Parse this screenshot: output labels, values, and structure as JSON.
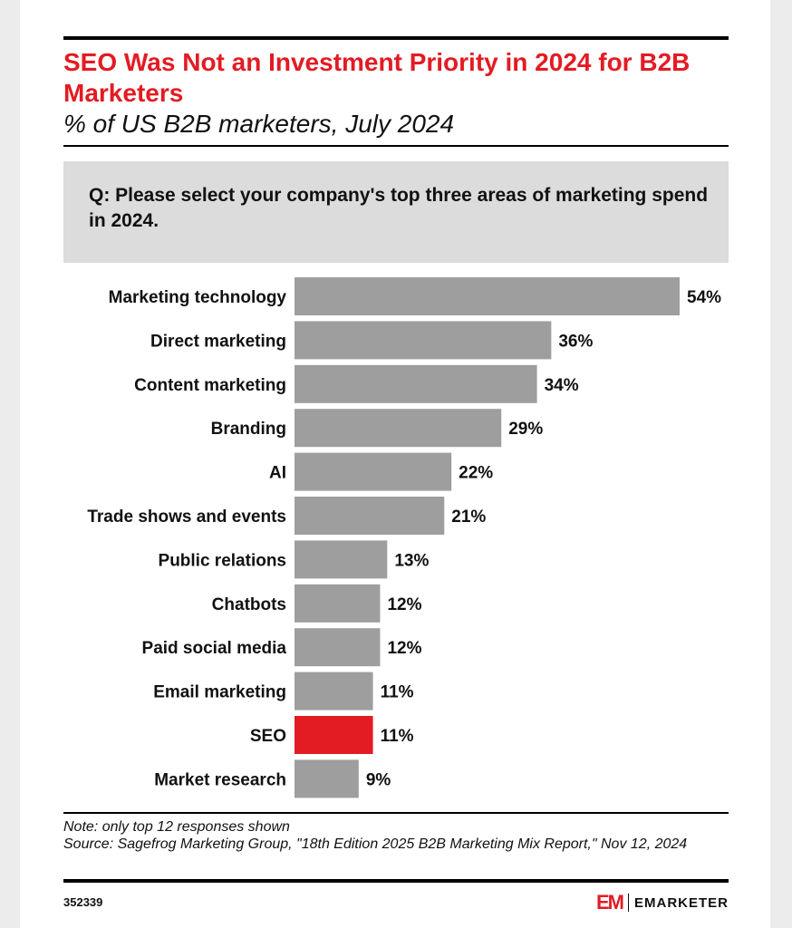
{
  "header": {
    "title": "SEO Was Not an Investment Priority in 2024 for B2B Marketers",
    "subtitle": "% of US B2B marketers, July 2024"
  },
  "question": "Q: Please select your company's top three areas of marketing spend in 2024.",
  "footer": {
    "note": "Note: only top 12 responses shown",
    "source": "Source: Sagefrog Marketing Group, \"18th Edition 2025 B2B Marketing Mix Report,\" Nov 12, 2024",
    "chart_id": "352339",
    "brand_mark": "EM",
    "brand_name": "EMARKETER"
  },
  "colors": {
    "bar": "#9e9e9e",
    "highlight": "#e31b23",
    "title": "#e31b23"
  },
  "chart_data": {
    "type": "bar",
    "orientation": "horizontal",
    "categories": [
      "Marketing technology",
      "Direct marketing",
      "Content marketing",
      "Branding",
      "AI",
      "Trade shows and events",
      "Public relations",
      "Chatbots",
      "Paid social media",
      "Email marketing",
      "SEO",
      "Market research"
    ],
    "values": [
      54,
      36,
      34,
      29,
      22,
      21,
      13,
      12,
      12,
      11,
      11,
      9
    ],
    "value_labels": [
      "54%",
      "36%",
      "34%",
      "29%",
      "22%",
      "21%",
      "13%",
      "12%",
      "12%",
      "11%",
      "11%",
      "9%"
    ],
    "highlight": "SEO",
    "title": "SEO Was Not an Investment Priority in 2024 for B2B Marketers",
    "subtitle": "% of US B2B marketers, July 2024",
    "xlim": [
      0,
      54
    ],
    "grid": false,
    "legend": "none"
  }
}
